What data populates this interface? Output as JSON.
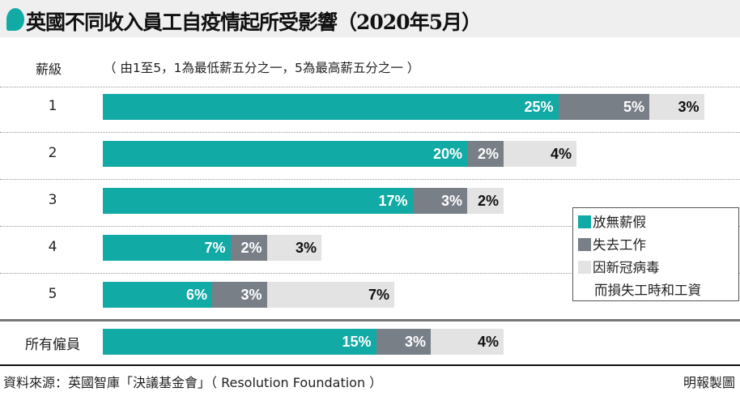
{
  "title": "英國不同收入員工自疫情起所受影響（2020年5月）",
  "axis_label": "薪級",
  "note": "（ 由1至5，1為最低薪五分之一，5為最高薪五分之一 ）",
  "source": "資料來源：英國智庫「決議基金會」（ Resolution Foundation ）",
  "credit": "明報製圖",
  "chart_data": {
    "type": "bar",
    "orientation": "horizontal",
    "stacked": true,
    "title": "英國不同收入員工自疫情起所受影響（2020年5月）",
    "ylabel": "薪級",
    "unit": "%",
    "categories": [
      "1",
      "2",
      "3",
      "4",
      "5",
      "所有僱員"
    ],
    "series": [
      {
        "name": "放無薪假",
        "color": "#12aaa5",
        "values": [
          25,
          20,
          17,
          7,
          6,
          15
        ],
        "labels": [
          "25%",
          "20%",
          "17%",
          "7%",
          "6%",
          "15%"
        ]
      },
      {
        "name": "失去工作",
        "color": "#787f87",
        "values": [
          5,
          2,
          3,
          2,
          3,
          3
        ],
        "labels": [
          "5%",
          "2%",
          "3%",
          "2%",
          "3%",
          "3%"
        ]
      },
      {
        "name": "因新冠病毒而損失工時和工資",
        "color": "#e3e3e3",
        "values": [
          3,
          4,
          2,
          3,
          7,
          4
        ],
        "labels": [
          "3%",
          "4%",
          "2%",
          "3%",
          "7%",
          "4%"
        ]
      }
    ],
    "legend": {
      "position": "right",
      "entries": [
        "放無薪假",
        "失去工作",
        "因新冠病毒",
        "而損失工時和工資"
      ]
    }
  }
}
